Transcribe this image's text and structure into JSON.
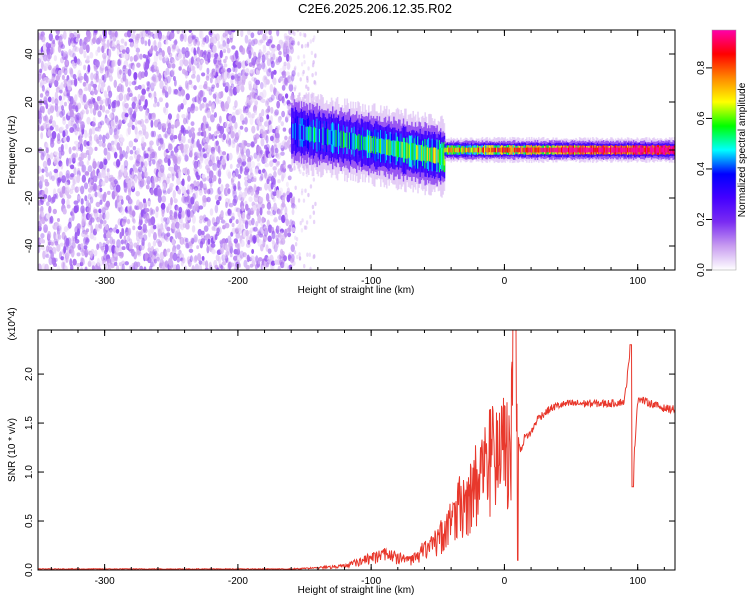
{
  "title": "C2E6.2025.206.12.35.R02",
  "colors": {
    "line": "#e8382c",
    "background": "#ffffff",
    "axis": "#000000"
  },
  "chart_data": [
    {
      "type": "heatmap",
      "title": "",
      "xlabel": "Height of straight line (km)",
      "ylabel": "Frequency (Hz)",
      "xlim": [
        -350,
        128
      ],
      "ylim": [
        -50,
        50
      ],
      "xticks": [
        -300,
        -200,
        -100,
        0,
        100
      ],
      "yticks": [
        -40,
        -20,
        0,
        20,
        40
      ],
      "colorbar": {
        "label": "Normalized spectral amplitude",
        "range": [
          0.0,
          0.95
        ],
        "ticks": [
          "0.0",
          "0.2",
          "0.4",
          "0.6",
          "0.8"
        ],
        "colormap": [
          "#ffffff",
          "#c89cf0",
          "#7a2cf2",
          "#4400ff",
          "#0000ff",
          "#00ffff",
          "#00ff00",
          "#ffff00",
          "#ff8800",
          "#ff0000",
          "#ff00aa"
        ]
      },
      "regions": [
        {
          "description": "noise",
          "x": [
            -350,
            -158
          ],
          "freq_range": [
            -50,
            50
          ],
          "amplitude": 0.1
        },
        {
          "description": "signal",
          "x": [
            -160,
            -45
          ],
          "center_freq": [
            8,
            -3
          ],
          "width_hz": 16,
          "amplitude": [
            0.3,
            0.45
          ]
        },
        {
          "description": "signal",
          "x": [
            -45,
            128
          ],
          "center_freq": 0,
          "width_hz": 5,
          "amplitude": [
            0.5,
            0.9
          ]
        }
      ]
    },
    {
      "type": "line",
      "title": "",
      "xlabel": "Height of straight line (km)",
      "ylabel": "SNR (10 * v/v)",
      "yscale_label": "(x10^4)",
      "xlim": [
        -350,
        128
      ],
      "ylim": [
        0,
        2.45
      ],
      "xticks": [
        -300,
        -200,
        -100,
        0,
        100
      ],
      "yticks": [
        "0.0",
        "0.5",
        "1.0",
        "1.5",
        "2.0"
      ],
      "x": [
        -350,
        -300,
        -250,
        -200,
        -160,
        -140,
        -120,
        -110,
        -100,
        -90,
        -80,
        -70,
        -60,
        -50,
        -45,
        -40,
        -35,
        -30,
        -25,
        -20,
        -15,
        -10,
        -5,
        0,
        5,
        8,
        10,
        12,
        15,
        20,
        25,
        30,
        35,
        40,
        50,
        60,
        70,
        80,
        90,
        95,
        96,
        100,
        110,
        120,
        128
      ],
      "series": [
        {
          "values": [
            0.01,
            0.01,
            0.01,
            0.01,
            0.01,
            0.02,
            0.04,
            0.08,
            0.12,
            0.15,
            0.12,
            0.1,
            0.2,
            0.3,
            0.38,
            0.45,
            0.6,
            0.7,
            0.75,
            0.9,
            1.0,
            1.1,
            1.05,
            1.2,
            1.3,
            2.45,
            1.4,
            1.2,
            1.35,
            1.4,
            1.55,
            1.6,
            1.65,
            1.68,
            1.7,
            1.7,
            1.7,
            1.7,
            1.72,
            2.3,
            0.85,
            1.75,
            1.7,
            1.65,
            1.64
          ]
        }
      ]
    }
  ]
}
